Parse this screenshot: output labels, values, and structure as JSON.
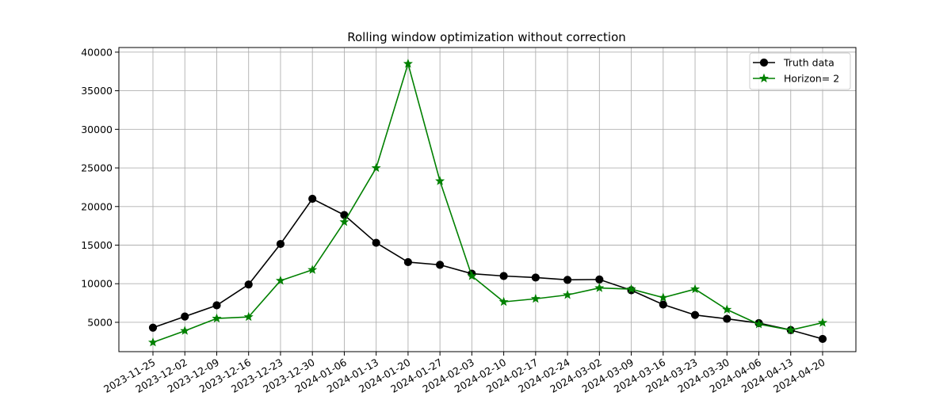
{
  "colors": {
    "truth": "#000000",
    "forecast": "#008000",
    "grid": "#b0b0b0",
    "axes": "#000000",
    "background": "#ffffff"
  },
  "chart_data": {
    "type": "line",
    "title": "Rolling window optimization without correction",
    "xlabel": "",
    "ylabel": "",
    "categories": [
      "2023-11-25",
      "2023-12-02",
      "2023-12-09",
      "2023-12-16",
      "2023-12-23",
      "2023-12-30",
      "2024-01-06",
      "2024-01-13",
      "2024-01-20",
      "2024-01-27",
      "2024-02-03",
      "2024-02-10",
      "2024-02-17",
      "2024-02-24",
      "2024-03-02",
      "2024-03-09",
      "2024-03-16",
      "2024-03-23",
      "2024-03-30",
      "2024-04-06",
      "2024-04-13",
      "2024-04-20"
    ],
    "y_ticks": [
      5000,
      10000,
      15000,
      20000,
      25000,
      30000,
      35000,
      40000
    ],
    "ylim": [
      1200,
      40600
    ],
    "grid": true,
    "legend_position": "top-right",
    "x_tick_rotation_deg": 30,
    "series": [
      {
        "name": "Truth data",
        "marker": "circle",
        "color": "#000000",
        "values": [
          4300,
          5750,
          7200,
          9900,
          15150,
          21000,
          18900,
          15300,
          12800,
          12450,
          11300,
          11000,
          10800,
          10500,
          10550,
          9150,
          7300,
          5950,
          5450,
          4900,
          4000,
          2850
        ]
      },
      {
        "name": "Horizon= 2",
        "marker": "star",
        "color": "#008000",
        "values": [
          2400,
          3900,
          5500,
          5700,
          10400,
          11800,
          18000,
          25000,
          38500,
          23300,
          11000,
          7650,
          8050,
          8550,
          9450,
          9300,
          8200,
          9300,
          6650,
          4750,
          4000,
          4950
        ]
      }
    ]
  }
}
